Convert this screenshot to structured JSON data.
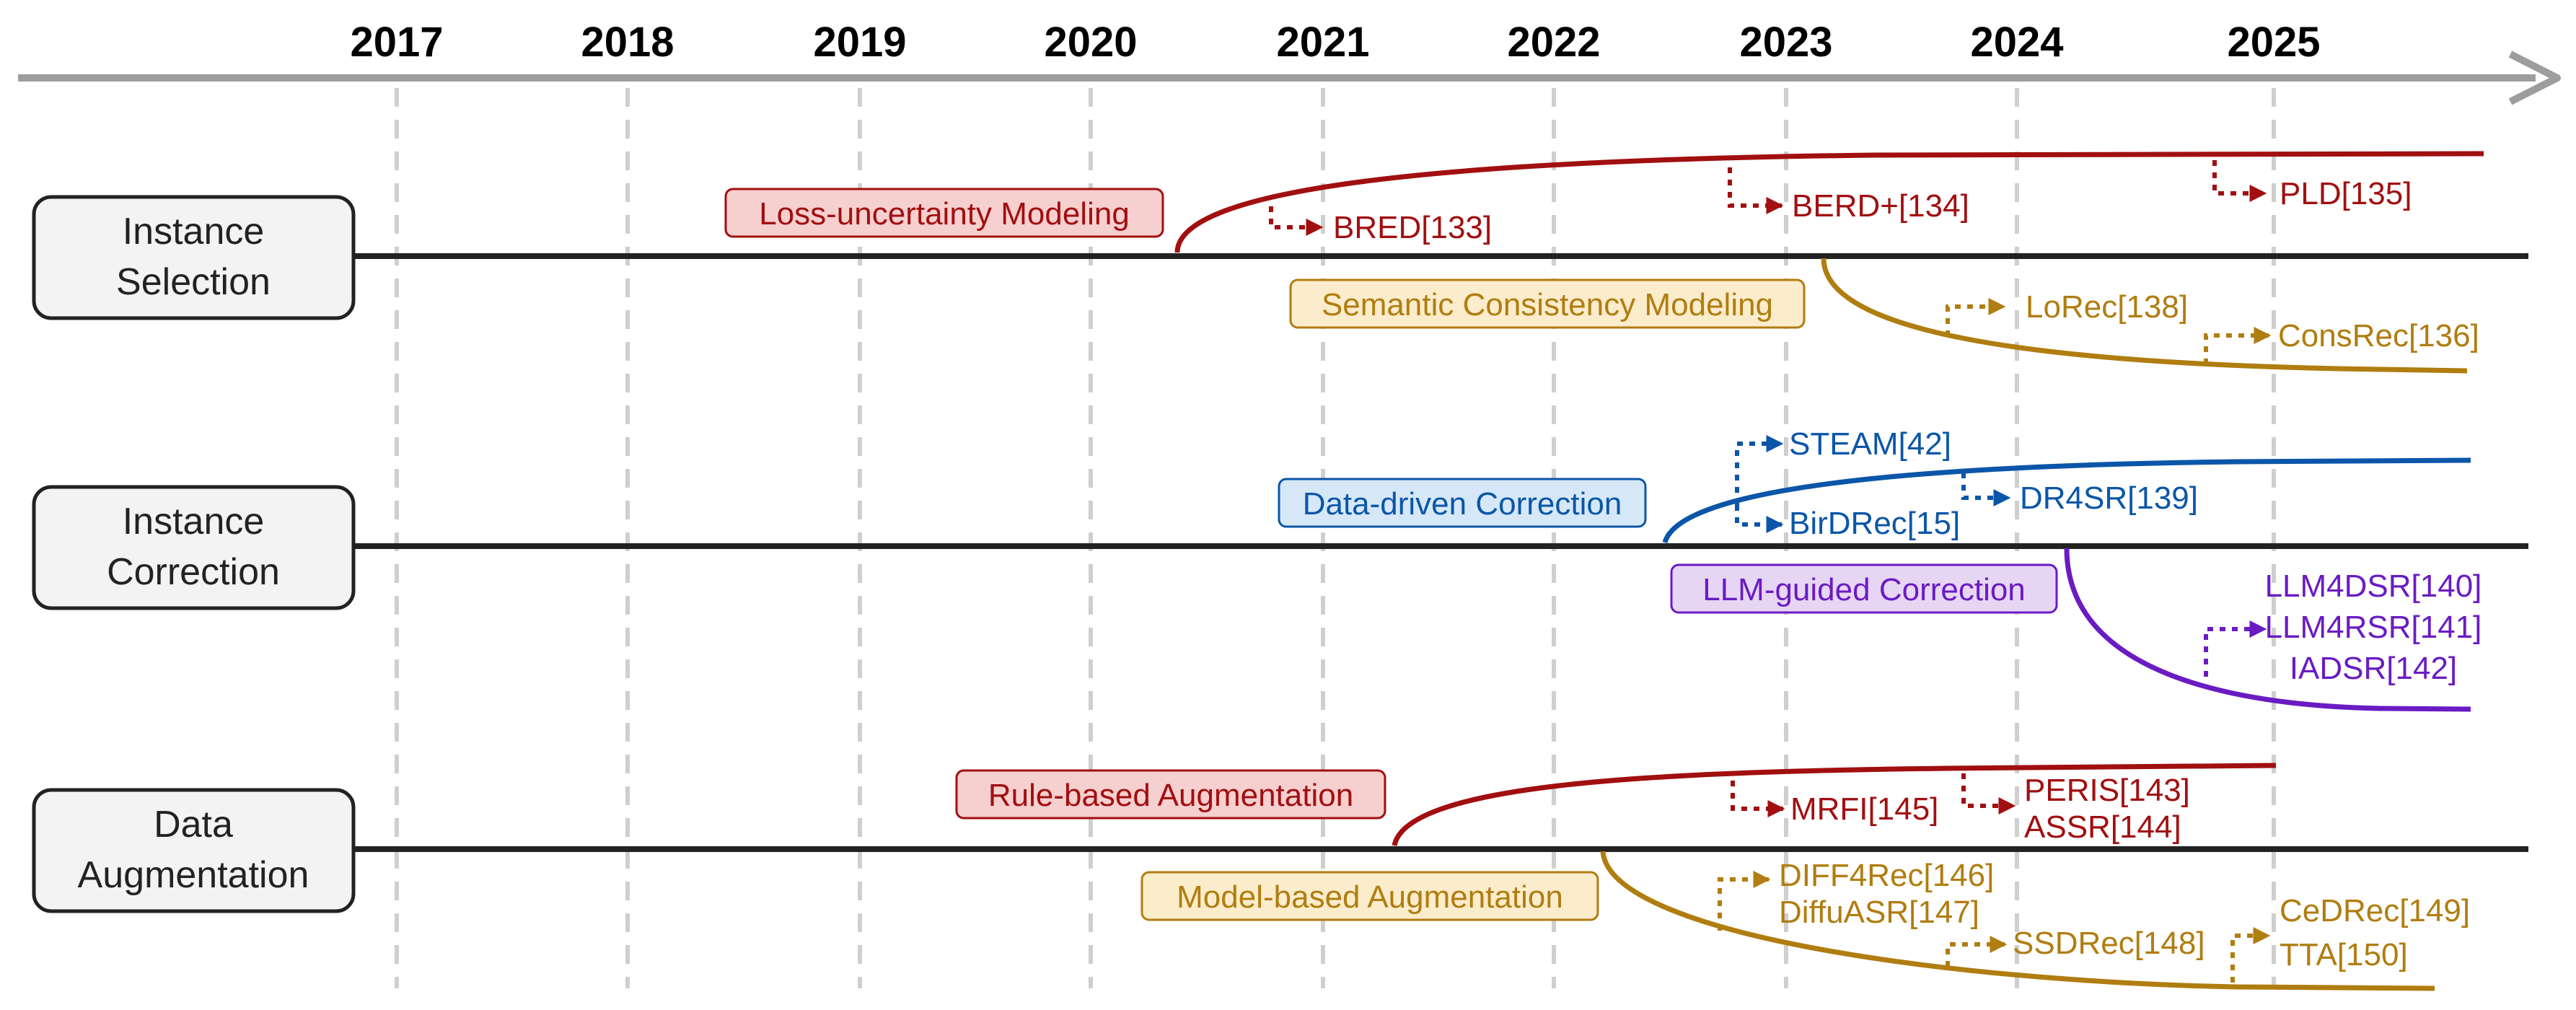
{
  "axis": {
    "years": [
      "2017",
      "2018",
      "2019",
      "2020",
      "2021",
      "2022",
      "2023",
      "2024",
      "2025"
    ]
  },
  "colors": {
    "red": "#a10f10",
    "red_fill": "#f6cfcf",
    "gold": "#b07d10",
    "gold_fill": "#fbeccb",
    "blue": "#0b56a8",
    "blue_fill": "#d6e8f7",
    "purple": "#6a1bc4",
    "purple_fill": "#e7d6f3",
    "axis_gray": "#9d9d9d"
  },
  "rows": {
    "selection": {
      "label_line1": "Instance",
      "label_line2": "Selection",
      "methods": [
        {
          "label": "Loss-uncertainty Modeling",
          "works": [
            "BRED[133]",
            "BERD+[134]",
            "PLD[135]"
          ]
        },
        {
          "label": "Semantic Consistency Modeling",
          "works": [
            "LoRec[138]",
            "ConsRec[136]"
          ]
        }
      ]
    },
    "correction": {
      "label_line1": "Instance",
      "label_line2": "Correction",
      "methods": [
        {
          "label": "Data-driven Correction",
          "works": [
            "STEAM[42]",
            "BirDRec[15]",
            "DR4SR[139]"
          ]
        },
        {
          "label": "LLM-guided Correction",
          "works": [
            "LLM4DSR[140]",
            "LLM4RSR[141]",
            "IADSR[142]"
          ]
        }
      ]
    },
    "augmentation": {
      "label_line1": "Data",
      "label_line2": "Augmentation",
      "methods": [
        {
          "label": "Rule-based Augmentation",
          "works": [
            "MRFI[145]",
            "PERIS[143]",
            "ASSR[144]"
          ]
        },
        {
          "label": "Model-based Augmentation",
          "works": [
            "DIFF4Rec[146]",
            "DiffuASR[147]",
            "SSDRec[148]",
            "CeDRec[149]",
            "TTA[150]"
          ]
        }
      ]
    }
  }
}
